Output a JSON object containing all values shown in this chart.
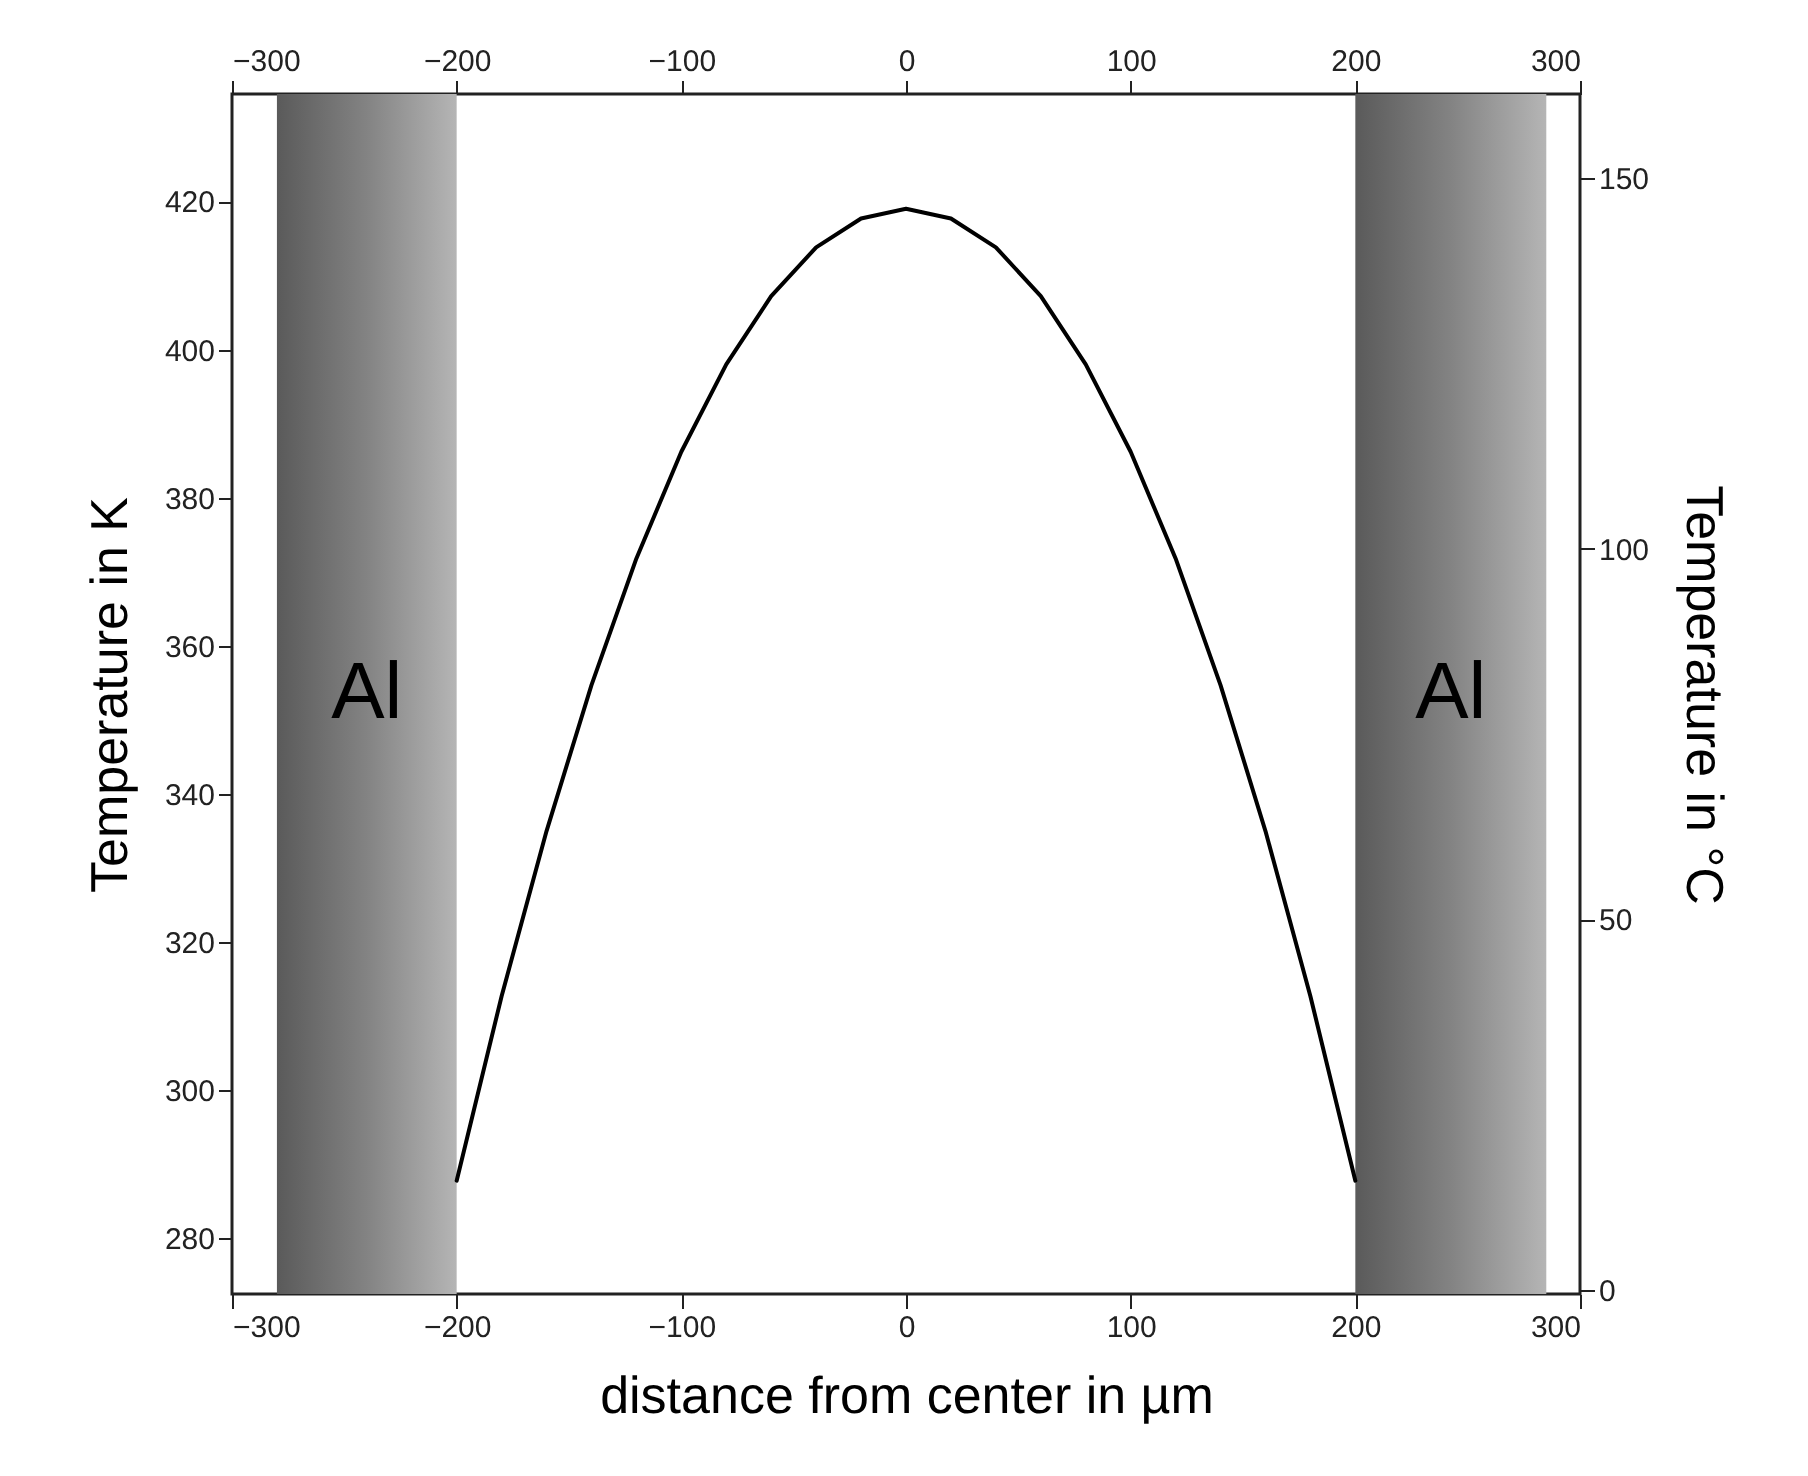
{
  "chart_data": {
    "type": "line",
    "xlabel": "distance from center in µm",
    "ylabel": "Temperature in K",
    "y2label": "Temperature in °C",
    "x": [
      -200,
      -180,
      -160,
      -140,
      -120,
      -100,
      -80,
      -60,
      -40,
      -20,
      0,
      20,
      40,
      60,
      80,
      100,
      120,
      140,
      160,
      180,
      200
    ],
    "series": [
      {
        "color": "#000000",
        "values": [
          287.8,
          312.7,
          335.0,
          354.7,
          371.8,
          386.2,
          398.0,
          407.2,
          413.8,
          417.7,
          419.0,
          417.7,
          413.8,
          407.2,
          398.0,
          386.2,
          371.8,
          354.7,
          335.0,
          312.7,
          287.8
        ]
      }
    ],
    "xlim": [
      -300,
      300
    ],
    "xticks": [
      -300,
      -200,
      -100,
      0,
      100,
      200,
      300
    ],
    "x2lim": [
      -300,
      300
    ],
    "x2ticks": [
      -300,
      -200,
      -100,
      0,
      100,
      200,
      300
    ],
    "ylim": [
      272.5,
      434.5
    ],
    "yticks": [
      280,
      300,
      320,
      340,
      360,
      380,
      400,
      420
    ],
    "y2lim": [
      -0.6,
      161.4
    ],
    "y2ticks": [
      0,
      50,
      100,
      150
    ],
    "bands": [
      {
        "axis": "x",
        "from": -280,
        "to": -200,
        "label": "Al",
        "color": "#5a5a5a"
      },
      {
        "axis": "x",
        "from": 200,
        "to": 285,
        "label": "Al",
        "color": "#5a5a5a"
      }
    ],
    "grid": false,
    "marker": "none",
    "line_style": "solid"
  }
}
